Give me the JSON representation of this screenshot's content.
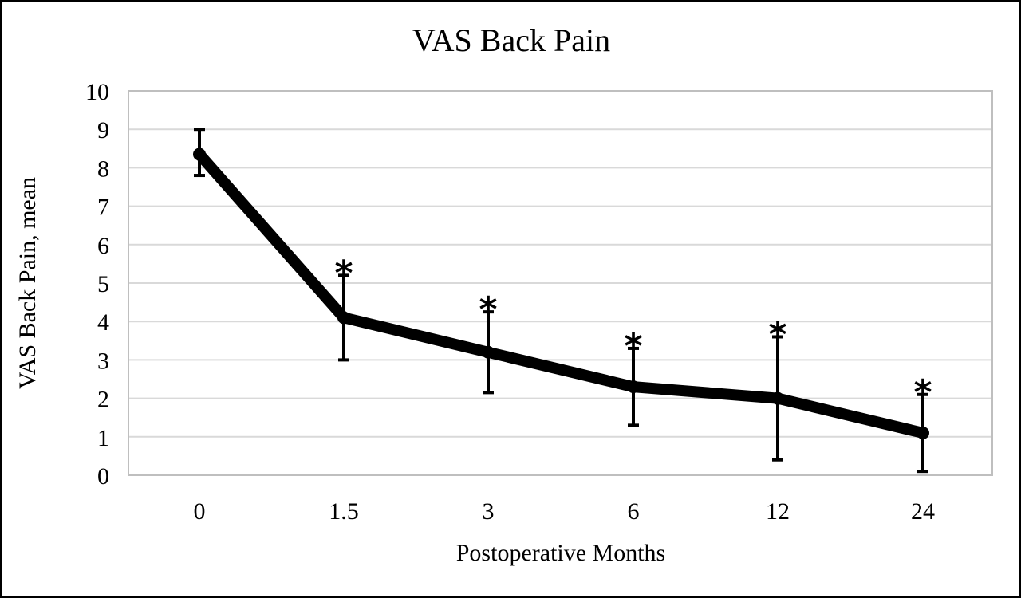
{
  "chart_data": {
    "type": "line",
    "title": "VAS Back Pain",
    "xlabel": "Postoperative Months",
    "ylabel": "VAS Back Pain, mean",
    "categories": [
      "0",
      "1.5",
      "3",
      "6",
      "12",
      "24"
    ],
    "series": [
      {
        "values": [
          8.35,
          4.1,
          3.2,
          2.3,
          2.0,
          1.1
        ],
        "error_low": [
          7.8,
          3.0,
          2.15,
          1.3,
          0.4,
          0.1
        ],
        "error_high": [
          9.0,
          5.2,
          4.25,
          3.3,
          3.6,
          2.1
        ],
        "significance_marks": [
          "",
          "*",
          "*",
          "*",
          "*",
          "*"
        ]
      }
    ],
    "yticks": [
      "0",
      "1",
      "2",
      "3",
      "4",
      "5",
      "6",
      "7",
      "8",
      "9",
      "10"
    ],
    "ylim": [
      0,
      10
    ],
    "grid": true,
    "colors": {
      "line": "#000000",
      "grid": "#d9d9d9",
      "plot_border": "#bfbfbf"
    }
  }
}
